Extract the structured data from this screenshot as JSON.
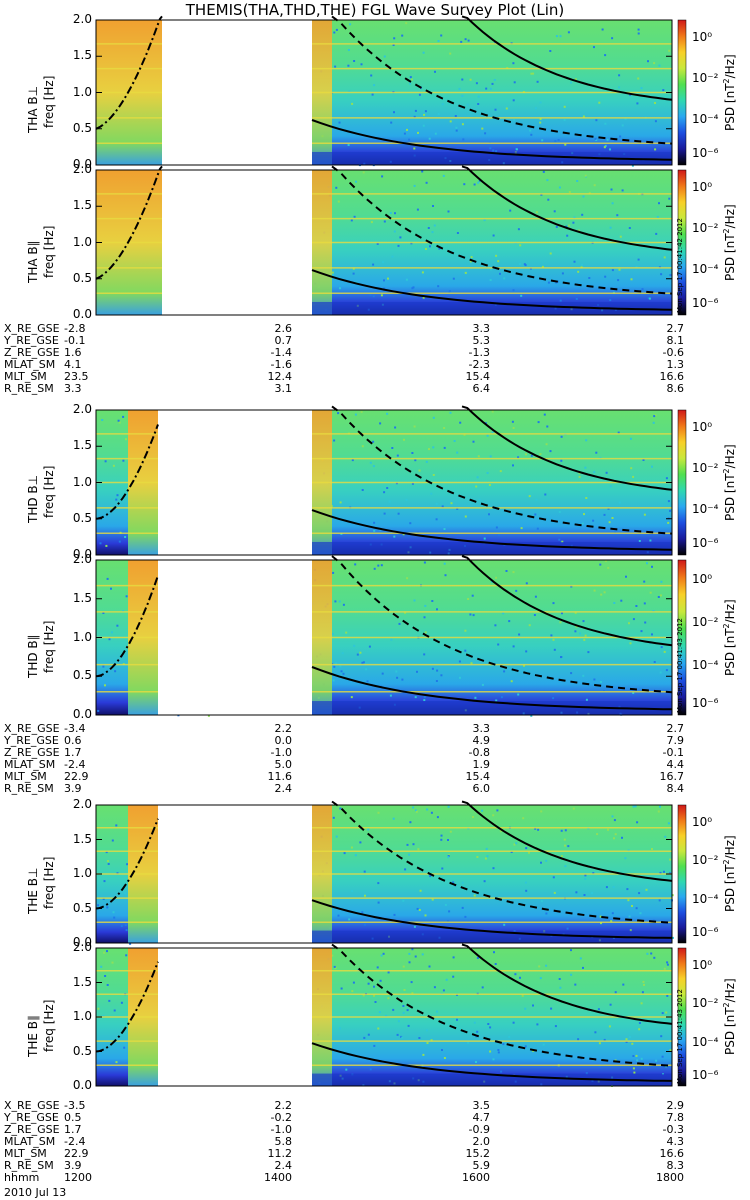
{
  "title": "THEMIS(THA,THD,THE) FGL Wave Survey Plot (Lin)",
  "chart_data": {
    "type": "heatmap",
    "x_label": "hhmm",
    "x_ticks": [
      "1200",
      "1400",
      "1600",
      "1800"
    ],
    "date": "2010 Jul 13",
    "y_label": "freq [Hz]",
    "y_ticks": [
      "0.0",
      "0.5",
      "1.0",
      "1.5",
      "2.0"
    ],
    "ylim": [
      0,
      2
    ],
    "colorbar": {
      "label": "PSD [nT²/Hz]",
      "label_main": "PSD [nT",
      "label_sup": "2",
      "label_tail": "/Hz]",
      "ticks": [
        "10⁰",
        "10⁻²",
        "10⁻⁴",
        "10⁻⁶"
      ],
      "colors": [
        "#000000",
        "#1a1a9a",
        "#1c4ee0",
        "#2aa8f0",
        "#2fd8b0",
        "#50e050",
        "#c8e83c",
        "#f8d028",
        "#f07818",
        "#d01818"
      ]
    },
    "panels": [
      {
        "label": "THA B⊥",
        "probe": "THA"
      },
      {
        "label": "THA B∥",
        "probe": "THA",
        "stamp": "Mon Sep 17 00:41:42 2012"
      },
      {
        "label": "THD B⊥",
        "probe": "THD"
      },
      {
        "label": "THD B∥",
        "probe": "THD",
        "stamp": "Mon Sep 17 00:41:43 2012"
      },
      {
        "label": "THE B⊥",
        "probe": "THE"
      },
      {
        "label": "THE B∥",
        "probe": "THE",
        "stamp": "Mon Sep 17 00:41:43 2012"
      }
    ],
    "ephemeris": [
      {
        "probe": "THA",
        "rows": [
          {
            "name": "X_RE_GSE",
            "values": [
              "-2.8",
              "2.6",
              "3.3",
              "2.7"
            ]
          },
          {
            "name": "Y_RE_GSE",
            "values": [
              "-0.1",
              "0.7",
              "5.3",
              "8.1"
            ]
          },
          {
            "name": "Z_RE_GSE",
            "values": [
              "1.6",
              "-1.4",
              "-1.3",
              "-0.6"
            ]
          },
          {
            "name": "MLAT_SM",
            "values": [
              "4.1",
              "-1.6",
              "-2.3",
              "1.3"
            ]
          },
          {
            "name": "MLT_SM",
            "values": [
              "23.5",
              "12.4",
              "15.4",
              "16.6"
            ]
          },
          {
            "name": "R_RE_SM",
            "values": [
              "3.3",
              "3.1",
              "6.4",
              "8.6"
            ]
          }
        ]
      },
      {
        "probe": "THD",
        "rows": [
          {
            "name": "X_RE_GSE",
            "values": [
              "-3.4",
              "2.2",
              "3.3",
              "2.7"
            ]
          },
          {
            "name": "Y_RE_GSE",
            "values": [
              "0.6",
              "0.0",
              "4.9",
              "7.9"
            ]
          },
          {
            "name": "Z_RE_GSE",
            "values": [
              "1.7",
              "-1.0",
              "-0.8",
              "-0.1"
            ]
          },
          {
            "name": "MLAT_SM",
            "values": [
              "-2.4",
              "5.0",
              "1.9",
              "4.4"
            ]
          },
          {
            "name": "MLT_SM",
            "values": [
              "22.9",
              "11.6",
              "15.4",
              "16.7"
            ]
          },
          {
            "name": "R_RE_SM",
            "values": [
              "3.9",
              "2.4",
              "6.0",
              "8.4"
            ]
          }
        ]
      },
      {
        "probe": "THE",
        "rows": [
          {
            "name": "X_RE_GSE",
            "values": [
              "-3.5",
              "2.2",
              "3.5",
              "2.9"
            ]
          },
          {
            "name": "Y_RE_GSE",
            "values": [
              "0.5",
              "-0.2",
              "4.7",
              "7.8"
            ]
          },
          {
            "name": "Z_RE_GSE",
            "values": [
              "1.7",
              "-1.0",
              "-0.9",
              "-0.3"
            ]
          },
          {
            "name": "MLAT_SM",
            "values": [
              "-2.4",
              "5.8",
              "2.0",
              "4.3"
            ]
          },
          {
            "name": "MLT_SM",
            "values": [
              "22.9",
              "11.2",
              "15.2",
              "16.6"
            ]
          },
          {
            "name": "R_RE_SM",
            "values": [
              "3.9",
              "2.4",
              "5.9",
              "8.3"
            ]
          }
        ]
      }
    ],
    "ephemeris_times": [
      "1200",
      "1400",
      "1600",
      "1800"
    ]
  }
}
